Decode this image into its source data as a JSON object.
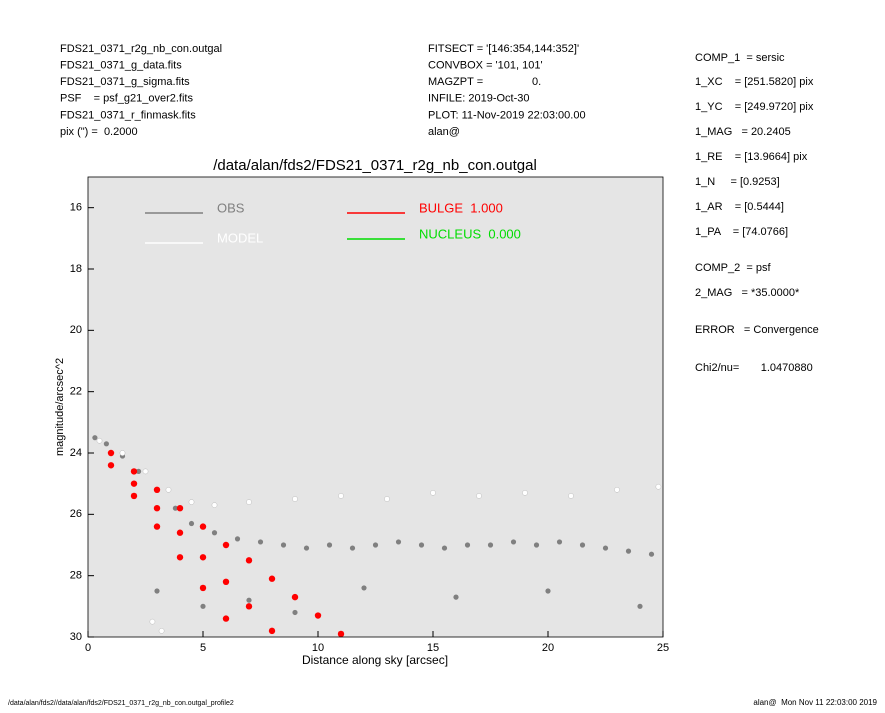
{
  "header": {
    "left": [
      "FDS21_0371_r2g_nb_con.outgal",
      "FDS21_0371_g_data.fits",
      "FDS21_0371_g_sigma.fits",
      "PSF    = psf_g21_over2.fits",
      "FDS21_0371_r_finmask.fits",
      "pix (\") =  0.2000"
    ],
    "middle": [
      "FITSECT = '[146:354,144:352]'",
      "CONVBOX = '101, 101'",
      "MAGZPT =                0.",
      "INFILE: 2019-Oct-30",
      "PLOT: 11-Nov-2019 22:03:00.00",
      "alan@"
    ]
  },
  "parameters": [
    "COMP_1  = sersic",
    "1_XC    = [251.5820] pix",
    "1_YC    = [249.9720] pix",
    "1_MAG   = 20.2405",
    "1_RE    = [13.9664] pix",
    "1_N     = [0.9253]",
    "1_AR    = [0.5444]",
    "1_PA    = [74.0766]",
    "COMP_2  = psf",
    "2_MAG   = *35.0000*",
    "ERROR   = Convergence",
    "Chi2/nu=       1.0470880"
  ],
  "footer": {
    "left": "/data/alan/fds2//data/alan/fds2/FDS21_0371_r2g_nb_con.outgal_profile2",
    "right": "alan@  Mon Nov 11 22:03:00 2019"
  },
  "chart_data": {
    "type": "scatter",
    "title": "/data/alan/fds2/FDS21_0371_r2g_nb_con.outgal",
    "x_label": "Distance along sky [arcsec]",
    "y_label": "magnitude/arcsec^2",
    "xlim": [
      0,
      25
    ],
    "xticks": [
      0,
      5,
      10,
      15,
      20,
      25
    ],
    "ylim": [
      15,
      30
    ],
    "yticks": [
      16,
      18,
      20,
      22,
      24,
      26,
      28,
      30
    ],
    "y_reversed": true,
    "background": "#e5e5e5",
    "series": [
      {
        "name": "OBS",
        "color": "#808080",
        "x": [
          0.3,
          0.8,
          1.5,
          2.2,
          3,
          3.8,
          4.5,
          5.5,
          6.5,
          7.5,
          8.5,
          9.5,
          10.5,
          11.5,
          12.5,
          13.5,
          14.5,
          15.5,
          16.5,
          17.5,
          18.5,
          19.5,
          20.5,
          21.5,
          22.5,
          23.5,
          24.5,
          3,
          5,
          7,
          9,
          12,
          16,
          20,
          24
        ],
        "values": [
          23.5,
          23.7,
          24.1,
          24.6,
          25.2,
          25.8,
          26.3,
          26.6,
          26.8,
          26.9,
          27.0,
          27.1,
          27.0,
          27.1,
          27.0,
          26.9,
          27.0,
          27.1,
          27.0,
          27.0,
          26.9,
          27.0,
          26.9,
          27.0,
          27.1,
          27.2,
          27.3,
          28.5,
          29,
          28.8,
          29.2,
          28.4,
          28.7,
          28.5,
          29.0
        ]
      },
      {
        "name": "MODEL",
        "color": "#ffffff",
        "x": [
          0.5,
          1.5,
          2.5,
          3.5,
          4.5,
          5.5,
          7,
          9,
          11,
          13,
          15,
          17,
          19,
          21,
          23,
          24.8,
          2.8,
          3.2
        ],
        "values": [
          23.6,
          24.0,
          24.6,
          25.2,
          25.6,
          25.7,
          25.6,
          25.5,
          25.4,
          25.5,
          25.3,
          25.4,
          25.3,
          25.4,
          25.2,
          25.1,
          29.5,
          29.8
        ]
      },
      {
        "name": "BULGE  1.000",
        "color": "#ff0000",
        "x": [
          1,
          2,
          3,
          4,
          5,
          6,
          7,
          8,
          9,
          10,
          11,
          1,
          2,
          3,
          4,
          5,
          6,
          2,
          3,
          4,
          5,
          6,
          7,
          8
        ],
        "values": [
          24.0,
          24.6,
          25.2,
          25.8,
          26.4,
          27.0,
          27.5,
          28.1,
          28.7,
          29.3,
          29.9,
          24.4,
          25.4,
          26.4,
          27.4,
          28.4,
          29.4,
          25.0,
          25.8,
          26.6,
          27.4,
          28.2,
          29.0,
          29.8
        ]
      },
      {
        "name": "NUCLEUS  0.000",
        "color": "#00dd00",
        "x": [],
        "values": []
      }
    ]
  }
}
